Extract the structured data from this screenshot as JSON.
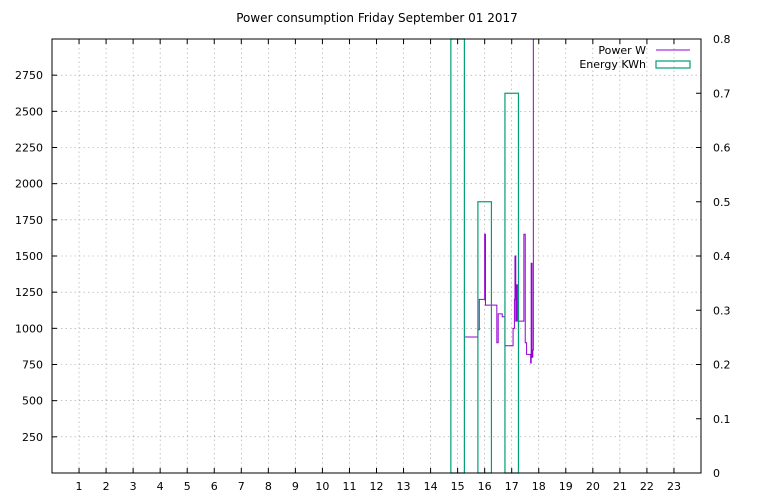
{
  "chart_data": {
    "type": "line",
    "title": "Power consumption Friday September 01 2017",
    "x_ticks": [
      1,
      2,
      3,
      4,
      5,
      6,
      7,
      8,
      9,
      10,
      11,
      12,
      13,
      14,
      15,
      16,
      17,
      18,
      19,
      20,
      21,
      22,
      23
    ],
    "xlim": [
      0,
      24
    ],
    "y_left_ticks": [
      250,
      500,
      750,
      1000,
      1250,
      1500,
      1750,
      2000,
      2250,
      2500,
      2750
    ],
    "ylim_left": [
      0,
      3000
    ],
    "y_right_ticks": [
      0,
      0.1,
      0.2,
      0.3,
      0.4,
      0.5,
      0.6,
      0.7,
      0.8
    ],
    "ylim_right": [
      0,
      0.8
    ],
    "grid": true,
    "legend_position": "top-right",
    "series": [
      {
        "name": "Power W",
        "color": "#9400d3",
        "axis": "left",
        "step": true,
        "points": [
          [
            15.25,
            940
          ],
          [
            15.45,
            940
          ],
          [
            15.7,
            940
          ],
          [
            15.75,
            990
          ],
          [
            15.8,
            1200
          ],
          [
            15.95,
            1200
          ],
          [
            16.0,
            1650
          ],
          [
            16.03,
            1160
          ],
          [
            16.1,
            1160
          ],
          [
            16.4,
            1160
          ],
          [
            16.45,
            900
          ],
          [
            16.5,
            1100
          ],
          [
            16.65,
            1080
          ],
          [
            16.75,
            880
          ],
          [
            16.9,
            880
          ],
          [
            17.0,
            880
          ],
          [
            17.05,
            1000
          ],
          [
            17.1,
            1200
          ],
          [
            17.12,
            1500
          ],
          [
            17.15,
            1050
          ],
          [
            17.18,
            1300
          ],
          [
            17.22,
            1050
          ],
          [
            17.3,
            1050
          ],
          [
            17.4,
            1050
          ],
          [
            17.45,
            1650
          ],
          [
            17.5,
            900
          ],
          [
            17.55,
            820
          ],
          [
            17.65,
            820
          ],
          [
            17.7,
            760
          ],
          [
            17.72,
            1450
          ],
          [
            17.75,
            800
          ],
          [
            17.78,
            850
          ],
          [
            17.8,
            3000
          ]
        ]
      },
      {
        "name": "Energy KWh",
        "color": "#009e73",
        "axis": "right",
        "type": "steps",
        "boxes": [
          {
            "x0": 14.75,
            "x1": 15.25,
            "value": 0.8
          },
          {
            "x0": 15.75,
            "x1": 16.25,
            "value": 0.5
          },
          {
            "x0": 16.75,
            "x1": 17.25,
            "value": 0.7
          }
        ]
      }
    ]
  }
}
